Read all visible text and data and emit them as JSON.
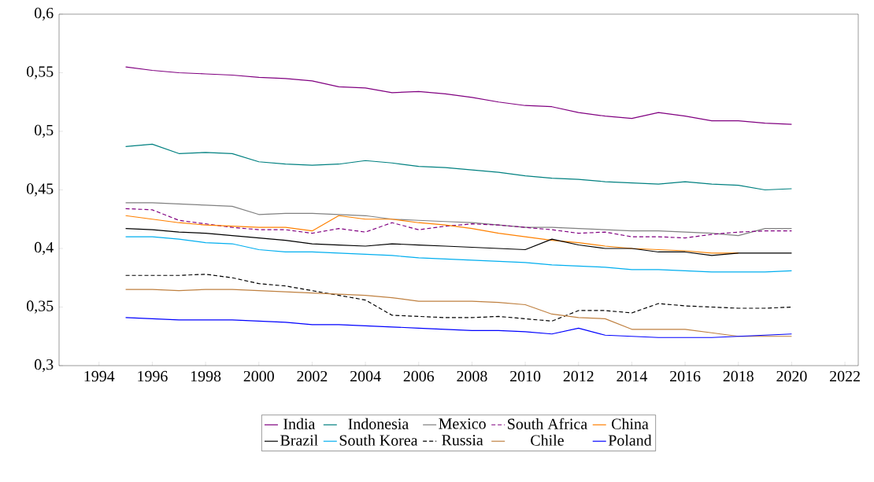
{
  "chart_data": {
    "type": "line",
    "x": [
      1995,
      1996,
      1997,
      1998,
      1999,
      2000,
      2001,
      2002,
      2003,
      2004,
      2005,
      2006,
      2007,
      2008,
      2009,
      2010,
      2011,
      2012,
      2013,
      2014,
      2015,
      2016,
      2017,
      2018,
      2019,
      2020
    ],
    "series": [
      {
        "name": "India",
        "color": "#800080",
        "line_style": "solid",
        "values": [
          0.555,
          0.552,
          0.55,
          0.549,
          0.548,
          0.546,
          0.545,
          0.543,
          0.538,
          0.537,
          0.533,
          0.534,
          0.532,
          0.529,
          0.525,
          0.522,
          0.521,
          0.516,
          0.513,
          0.511,
          0.516,
          0.513,
          0.509,
          0.509,
          0.507,
          0.506
        ]
      },
      {
        "name": "Indonesia",
        "color": "#008080",
        "line_style": "solid",
        "values": [
          0.487,
          0.489,
          0.481,
          0.482,
          0.481,
          0.474,
          0.472,
          0.471,
          0.472,
          0.475,
          0.473,
          0.47,
          0.469,
          0.467,
          0.465,
          0.462,
          0.46,
          0.459,
          0.457,
          0.456,
          0.455,
          0.457,
          0.455,
          0.454,
          0.45,
          0.451
        ]
      },
      {
        "name": "Mexico",
        "color": "#808080",
        "line_style": "solid",
        "values": [
          0.439,
          0.439,
          0.438,
          0.437,
          0.436,
          0.429,
          0.43,
          0.43,
          0.429,
          0.428,
          0.425,
          0.424,
          0.423,
          0.422,
          0.42,
          0.418,
          0.418,
          0.417,
          0.416,
          0.415,
          0.415,
          0.414,
          0.413,
          0.411,
          0.417,
          0.417
        ]
      },
      {
        "name": "South Africa",
        "color": "#800080",
        "line_style": "dashed",
        "values": [
          0.434,
          0.433,
          0.424,
          0.421,
          0.418,
          0.416,
          0.416,
          0.413,
          0.417,
          0.414,
          0.422,
          0.416,
          0.419,
          0.421,
          0.42,
          0.418,
          0.416,
          0.413,
          0.414,
          0.41,
          0.41,
          0.409,
          0.412,
          0.414,
          0.415,
          0.415
        ]
      },
      {
        "name": "China",
        "color": "#ff8000",
        "line_style": "solid",
        "values": [
          0.428,
          0.425,
          0.422,
          0.42,
          0.419,
          0.418,
          0.418,
          0.415,
          0.428,
          0.425,
          0.425,
          0.422,
          0.42,
          0.417,
          0.413,
          0.41,
          0.407,
          0.405,
          0.402,
          0.4,
          0.399,
          0.398,
          0.396,
          0.396,
          null,
          null
        ]
      },
      {
        "name": "Brazil",
        "color": "#000000",
        "line_style": "solid",
        "values": [
          0.417,
          0.416,
          0.414,
          0.413,
          0.411,
          0.409,
          0.407,
          0.404,
          0.403,
          0.402,
          0.404,
          0.403,
          0.402,
          0.401,
          0.4,
          0.399,
          0.408,
          0.403,
          0.4,
          0.4,
          0.397,
          0.397,
          0.394,
          0.396,
          0.396,
          0.396
        ]
      },
      {
        "name": "South Korea",
        "color": "#00aeef",
        "line_style": "solid",
        "values": [
          0.41,
          0.41,
          0.408,
          0.405,
          0.404,
          0.399,
          0.397,
          0.397,
          0.396,
          0.395,
          0.394,
          0.392,
          0.391,
          0.39,
          0.389,
          0.388,
          0.386,
          0.385,
          0.384,
          0.382,
          0.382,
          0.381,
          0.38,
          0.38,
          0.38,
          0.381
        ]
      },
      {
        "name": "Russia",
        "color": "#000000",
        "line_style": "dashed",
        "values": [
          0.377,
          0.377,
          0.377,
          0.378,
          0.375,
          0.37,
          0.368,
          0.364,
          0.36,
          0.356,
          0.343,
          0.342,
          0.341,
          0.341,
          0.342,
          0.34,
          0.338,
          0.347,
          0.347,
          0.345,
          0.353,
          0.351,
          0.35,
          0.349,
          0.349,
          0.35
        ]
      },
      {
        "name": "Chile",
        "color": "#bf8040",
        "line_style": "solid",
        "values": [
          0.365,
          0.365,
          0.364,
          0.365,
          0.365,
          0.364,
          0.363,
          0.362,
          0.361,
          0.36,
          0.358,
          0.355,
          0.355,
          0.355,
          0.354,
          0.352,
          0.344,
          0.341,
          0.34,
          0.331,
          0.331,
          0.331,
          0.328,
          0.325,
          0.325,
          0.325
        ]
      },
      {
        "name": "Poland",
        "color": "#0000ff",
        "line_style": "solid",
        "values": [
          0.341,
          0.34,
          0.339,
          0.339,
          0.339,
          0.338,
          0.337,
          0.335,
          0.335,
          0.334,
          0.333,
          0.332,
          0.331,
          0.33,
          0.33,
          0.329,
          0.327,
          0.332,
          0.326,
          0.325,
          0.324,
          0.324,
          0.324,
          0.325,
          0.326,
          0.327
        ]
      }
    ],
    "xlim": [
      1992.5,
      2022.5
    ],
    "xticks": [
      1994,
      1996,
      1998,
      2000,
      2002,
      2004,
      2006,
      2008,
      2010,
      2012,
      2014,
      2016,
      2018,
      2020,
      2022
    ],
    "ylim": [
      0.3,
      0.6
    ],
    "yticks": [
      {
        "value": 0.3,
        "label": "0,3"
      },
      {
        "value": 0.35,
        "label": "0,35"
      },
      {
        "value": 0.4,
        "label": "0,4"
      },
      {
        "value": 0.45,
        "label": "0,45"
      },
      {
        "value": 0.5,
        "label": "0,5"
      },
      {
        "value": 0.55,
        "label": "0,55"
      },
      {
        "value": 0.6,
        "label": "0,6"
      }
    ],
    "grid": false,
    "legend": "bottom",
    "marker": "none"
  }
}
